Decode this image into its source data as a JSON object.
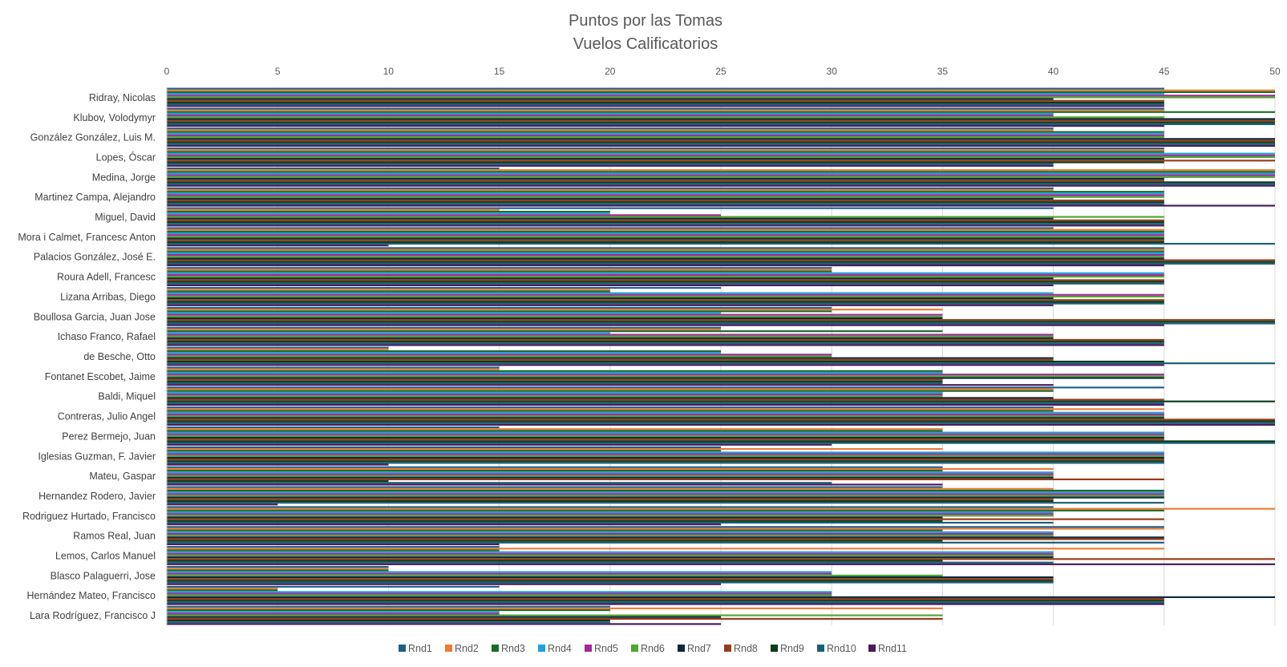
{
  "chart_data": {
    "type": "bar",
    "orientation": "horizontal",
    "title": "Puntos por las Tomas",
    "subtitle": "Vuelos Calificatorios",
    "xlim": [
      0,
      50
    ],
    "xticks": [
      0,
      5,
      10,
      15,
      20,
      25,
      30,
      35,
      40,
      45,
      50
    ],
    "x_axis_position": "top",
    "legend_position": "bottom",
    "colors": [
      "#1f5f8b",
      "#ed7d31",
      "#1e6b2e",
      "#1ea1d9",
      "#a22a9c",
      "#4ea72e",
      "#0e2841",
      "#9a3b16",
      "#0b3d1a",
      "#1a5f7a",
      "#4a1a5e"
    ],
    "categories": [
      "Ridray, Nicolas",
      "Klubov, Volodymyr",
      "González González, Luis M.",
      "Lopes, Óscar",
      "Medina, Jorge",
      "Martinez Campa, Alejandro",
      "Miguel, David",
      "Mora i Calmet, Francesc Anton",
      "Palacios González, José E.",
      "Roura Adell, Francesc",
      "Lizana Arribas, Diego",
      "Boullosa Garcia, Juan Jose",
      "Ichaso Franco, Rafael",
      "de Besche, Otto",
      "Fontanet Escobet, Jaime",
      "Baldi, Miquel",
      "Contreras, Julio Angel",
      "Perez Bermejo, Juan",
      "Iglesias Guzman, F. Javier",
      "Mateu, Gaspar",
      "Hernandez Rodero, Javier",
      "Rodriguez Hurtado, Francisco",
      "Ramos Real, Juan",
      "Lemos, Carlos Manuel",
      "Blasco Palaguerri, Jose",
      "Hernández Mateo, Francisco",
      "Lara Rodríguez, Francisco J"
    ],
    "series": [
      {
        "name": "Rnd1",
        "values": [
          45,
          45,
          40,
          45,
          15,
          40,
          40,
          40,
          45,
          30,
          25,
          30,
          25,
          10,
          15,
          45,
          40,
          15,
          25,
          35,
          35,
          40,
          45,
          15,
          10,
          15,
          20
        ]
      },
      {
        "name": "Rnd2",
        "values": [
          50,
          45,
          40,
          45,
          50,
          40,
          15,
          45,
          45,
          30,
          20,
          35,
          25,
          10,
          15,
          40,
          45,
          35,
          35,
          40,
          40,
          50,
          45,
          45,
          10,
          5,
          35
        ]
      },
      {
        "name": "Rnd3",
        "values": [
          50,
          50,
          45,
          45,
          50,
          45,
          20,
          45,
          45,
          30,
          20,
          30,
          35,
          25,
          35,
          40,
          40,
          35,
          25,
          35,
          45,
          45,
          35,
          15,
          10,
          5,
          20
        ]
      },
      {
        "name": "Rnd4",
        "values": [
          45,
          40,
          45,
          50,
          50,
          45,
          20,
          45,
          45,
          45,
          40,
          25,
          20,
          25,
          35,
          35,
          45,
          45,
          45,
          40,
          45,
          40,
          40,
          40,
          30,
          30,
          15
        ]
      },
      {
        "name": "Rnd5",
        "values": [
          50,
          40,
          45,
          50,
          50,
          45,
          25,
          45,
          45,
          45,
          45,
          35,
          40,
          30,
          45,
          35,
          45,
          45,
          45,
          40,
          45,
          40,
          40,
          40,
          30,
          30,
          15
        ]
      },
      {
        "name": "Rnd6",
        "values": [
          50,
          45,
          45,
          50,
          50,
          45,
          45,
          45,
          45,
          45,
          45,
          35,
          40,
          30,
          45,
          35,
          45,
          45,
          45,
          40,
          45,
          40,
          40,
          40,
          35,
          30,
          35
        ]
      },
      {
        "name": "Rnd7",
        "values": [
          40,
          50,
          50,
          45,
          45,
          40,
          40,
          45,
          45,
          40,
          40,
          35,
          40,
          40,
          45,
          40,
          45,
          45,
          45,
          40,
          45,
          35,
          45,
          40,
          40,
          50,
          25
        ]
      },
      {
        "name": "Rnd8",
        "values": [
          45,
          50,
          50,
          50,
          45,
          45,
          45,
          45,
          50,
          45,
          45,
          50,
          45,
          40,
          35,
          45,
          50,
          45,
          45,
          45,
          40,
          45,
          45,
          50,
          40,
          45,
          35
        ]
      },
      {
        "name": "Rnd9",
        "values": [
          45,
          50,
          50,
          45,
          50,
          45,
          45,
          45,
          50,
          45,
          45,
          50,
          45,
          45,
          35,
          50,
          50,
          50,
          45,
          10,
          40,
          35,
          35,
          35,
          40,
          45,
          20
        ]
      },
      {
        "name": "Rnd10",
        "values": [
          45,
          50,
          50,
          40,
          50,
          45,
          45,
          50,
          50,
          45,
          45,
          50,
          45,
          50,
          35,
          45,
          50,
          50,
          45,
          30,
          45,
          40,
          45,
          40,
          40,
          45,
          20
        ]
      },
      {
        "name": "Rnd11",
        "values": [
          45,
          45,
          50,
          40,
          50,
          50,
          45,
          10,
          45,
          40,
          40,
          45,
          45,
          45,
          40,
          45,
          50,
          30,
          10,
          35,
          5,
          25,
          15,
          50,
          25,
          45,
          25
        ]
      }
    ]
  }
}
